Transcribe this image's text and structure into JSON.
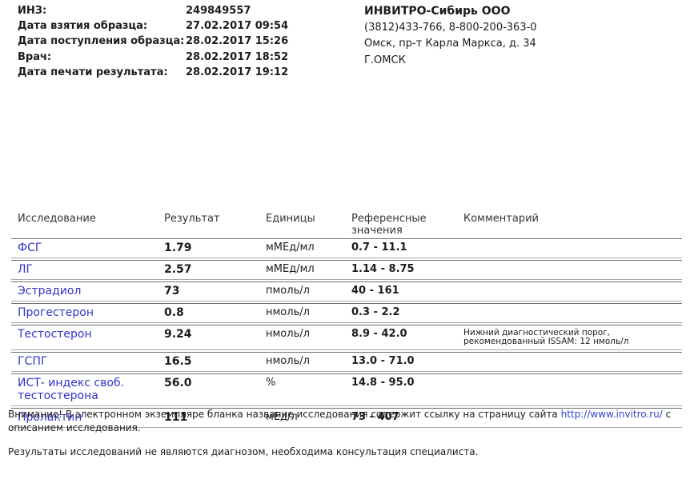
{
  "header": {
    "meta": [
      {
        "label": "ИНЗ:",
        "value": "249849557"
      },
      {
        "label": "Дата взятия образца:",
        "value": "27.02.2017 09:54"
      },
      {
        "label": "Дата поступления образца:",
        "value": "28.02.2017 15:26"
      },
      {
        "label": "Врач:",
        "value": "28.02.2017 18:52"
      },
      {
        "label": "Дата печати результата:",
        "value": "28.02.2017 19:12"
      }
    ],
    "lab": {
      "name": "ИНВИТРО-Сибирь ООО",
      "phones": "(3812)433-766, 8-800-200-363-0",
      "address": "Омск, пр-т Карла Маркса, д. 34",
      "city": "Г.ОМСК"
    }
  },
  "table": {
    "columns": [
      "Исследование",
      "Результат",
      "Единицы",
      "Референсные значения",
      "Комментарий"
    ],
    "rows": [
      {
        "name": "ФСГ",
        "result": "1.79",
        "units": "мМЕд/мл",
        "reference": "0.7 - 11.1",
        "comment": ""
      },
      {
        "name": "ЛГ",
        "result": "2.57",
        "units": "мМЕд/мл",
        "reference": "1.14 - 8.75",
        "comment": ""
      },
      {
        "name": "Эстрадиол",
        "result": "73",
        "units": "пмоль/л",
        "reference": "40 - 161",
        "comment": ""
      },
      {
        "name": "Прогестерон",
        "result": "0.8",
        "units": "нмоль/л",
        "reference": "0.3 - 2.2",
        "comment": ""
      },
      {
        "name": "Тестостерон",
        "result": "9.24",
        "units": "нмоль/л",
        "reference": "8.9 - 42.0",
        "comment": "Нижний диагностический порог,\nрекомендованный ISSAM: 12 нмоль/л"
      },
      {
        "name": "ГСПГ",
        "result": "16.5",
        "units": "нмоль/л",
        "reference": "13.0 - 71.0",
        "comment": ""
      },
      {
        "name": "ИСТ- индекс своб. тестостерона",
        "result": "56.0",
        "units": "%",
        "reference": "14.8 - 95.0",
        "comment": ""
      },
      {
        "name": "Пролактин",
        "result": "111",
        "units": "мЕд/л",
        "reference": "73 - 407",
        "comment": ""
      }
    ]
  },
  "footer": {
    "notice_before_link": "Внимание! В электронном экземпляре бланка название исследования содержит ссылку на страницу сайта ",
    "link": "http://www.invitro.ru/",
    "notice_after_link": " с описанием исследования.",
    "disclaimer": "Результаты исследований не являются диагнозом, необходима консультация специалиста."
  },
  "colors": {
    "link_blue": "#3333cc",
    "text": "#1c1c1c",
    "row_border_dark": "#6f6f6f",
    "row_border_light": "#aaaaaa"
  }
}
